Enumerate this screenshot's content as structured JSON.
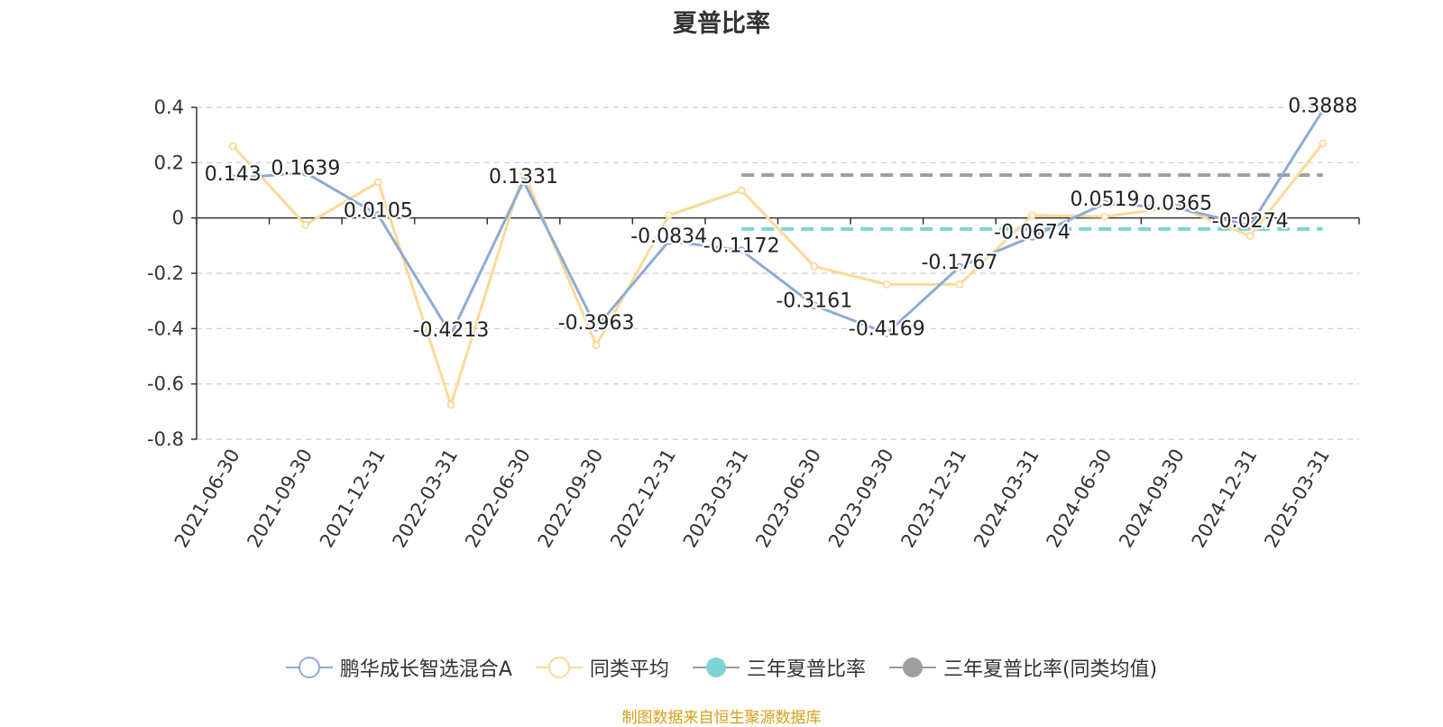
{
  "chart_data": {
    "type": "line",
    "title": "夏普比率",
    "categories": [
      "2021-06-30",
      "2021-09-30",
      "2021-12-31",
      "2022-03-31",
      "2022-06-30",
      "2022-09-30",
      "2022-12-31",
      "2023-03-31",
      "2023-06-30",
      "2023-09-30",
      "2023-12-31",
      "2024-03-31",
      "2024-06-30",
      "2024-09-30",
      "2024-12-31",
      "2025-03-31"
    ],
    "ylim": [
      -0.8,
      0.4
    ],
    "yticks": [
      0.4,
      0.2,
      0,
      -0.2,
      -0.4,
      -0.6,
      -0.8
    ],
    "grid": true,
    "legend_position": "bottom",
    "series": [
      {
        "name": "鹏华成长智选混合A",
        "color": "#8eabd6",
        "values": [
          0.143,
          0.1639,
          0.0105,
          -0.4213,
          0.1331,
          -0.3963,
          -0.0834,
          -0.1172,
          -0.3161,
          -0.4169,
          -0.1767,
          -0.0674,
          0.0519,
          0.0365,
          -0.0274,
          0.3888
        ],
        "labels": [
          "0.143",
          "0.1639",
          "0.0105",
          "-0.4213",
          "0.1331",
          "-0.3963",
          "-0.0834",
          "-0.1172",
          "-0.3161",
          "-0.4169",
          "-0.1767",
          "-0.0674",
          "0.0519",
          "0.0365",
          "-0.0274",
          "0.3888"
        ]
      },
      {
        "name": "同类平均",
        "color": "#fbd996",
        "values": [
          0.26,
          -0.025,
          0.13,
          -0.675,
          0.165,
          -0.46,
          0.01,
          0.1,
          -0.175,
          -0.24,
          -0.24,
          0.01,
          0.005,
          0.04,
          -0.065,
          0.27
        ]
      },
      {
        "name": "三年夏普比率",
        "color": "#7fd3d3",
        "type": "reference",
        "value": -0.04,
        "from": "2023-03-31",
        "to": "2025-03-31"
      },
      {
        "name": "三年夏普比率(同类均值)",
        "color": "#9e9e9e",
        "type": "reference",
        "value": 0.155,
        "from": "2023-03-31",
        "to": "2025-03-31"
      }
    ]
  },
  "footer": {
    "source": "制图数据来自恒生聚源数据库"
  }
}
